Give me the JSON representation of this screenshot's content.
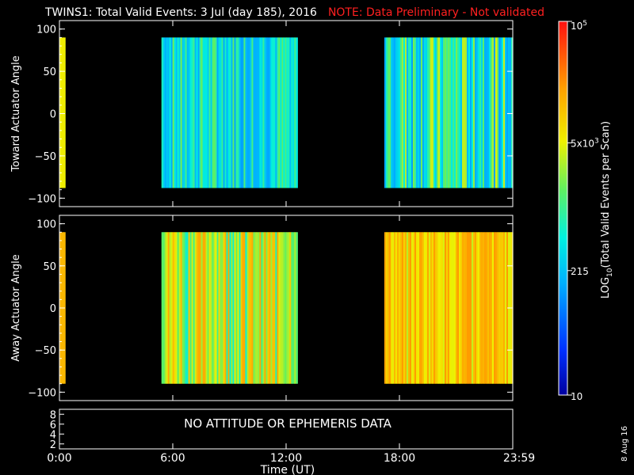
{
  "header": {
    "title": "TWINS1: Total Valid Events:  3 Jul (day 185), 2016",
    "note": "NOTE: Data Preliminary - Not validated"
  },
  "date_stamp": "8 Aug 16",
  "no_data_message": "NO ATTITUDE OR EPHEMERIS DATA",
  "colors": {
    "background": "#000000",
    "axes": "#ffffff",
    "note": "#ff2020"
  },
  "chart_data": [
    {
      "type": "heatmap",
      "name_key": "toward",
      "ylabel": "Toward Actuator Angle",
      "ylim": [
        -110,
        110
      ],
      "yticks": [
        "100",
        "50",
        "0",
        "−50",
        "−100"
      ],
      "ytick_values": [
        100,
        50,
        0,
        -50,
        -100
      ],
      "xlim_hours": [
        0,
        24
      ],
      "data_ylim": [
        -88,
        90
      ],
      "segments": [
        {
          "start_h": 0.0,
          "end_h": 0.3,
          "log_value_range": [
            3.7,
            3.8
          ],
          "mean_log": 3.75
        },
        {
          "start_h": 5.4,
          "end_h": 12.6,
          "log_value_range": [
            2.1,
            3.4
          ],
          "mean_log": 2.7
        },
        {
          "start_h": 17.2,
          "end_h": 24.0,
          "log_value_range": [
            2.1,
            3.8
          ],
          "mean_log": 2.9
        }
      ]
    },
    {
      "type": "heatmap",
      "name_key": "away",
      "ylabel": "Away Actuator Angle",
      "ylim": [
        -110,
        110
      ],
      "yticks": [
        "100",
        "50",
        "0",
        "−50",
        "−100"
      ],
      "ytick_values": [
        100,
        50,
        0,
        -50,
        -100
      ],
      "xlim_hours": [
        0,
        24
      ],
      "data_ylim": [
        -90,
        90
      ],
      "segments": [
        {
          "start_h": 0.0,
          "end_h": 0.3,
          "log_value_range": [
            4.1,
            4.2
          ],
          "mean_log": 4.15
        },
        {
          "start_h": 5.4,
          "end_h": 12.6,
          "log_value_range": [
            2.7,
            4.2
          ],
          "mean_log": 3.7
        },
        {
          "start_h": 17.2,
          "end_h": 24.0,
          "log_value_range": [
            3.5,
            4.3
          ],
          "mean_log": 4.0
        }
      ]
    },
    {
      "type": "line",
      "name_key": "attitude",
      "yticks": [
        "8",
        "6",
        "4",
        "2"
      ],
      "ytick_values": [
        8,
        6,
        4,
        2
      ],
      "ylim": [
        1,
        9
      ],
      "xlabel": "Time (UT)",
      "xticks": [
        "0:00",
        "6:00",
        "12:00",
        "18:00",
        "23:59"
      ],
      "xtick_hours": [
        0,
        6,
        12,
        18,
        24
      ],
      "series": []
    }
  ],
  "colorbar": {
    "label": "LOG10(Total Valid Events per Scan)",
    "label_main": "LOG",
    "label_sub": "10",
    "label_rest": "(Total Valid Events per Scan)",
    "scale": "log",
    "range": [
      10,
      100000
    ],
    "ticks": [
      {
        "value": 10,
        "text": "10"
      },
      {
        "value": 215,
        "text": "215"
      },
      {
        "value": 5000,
        "text": "5x10",
        "exp": "3"
      },
      {
        "value": 100000,
        "text": "10",
        "exp": "5"
      }
    ]
  }
}
